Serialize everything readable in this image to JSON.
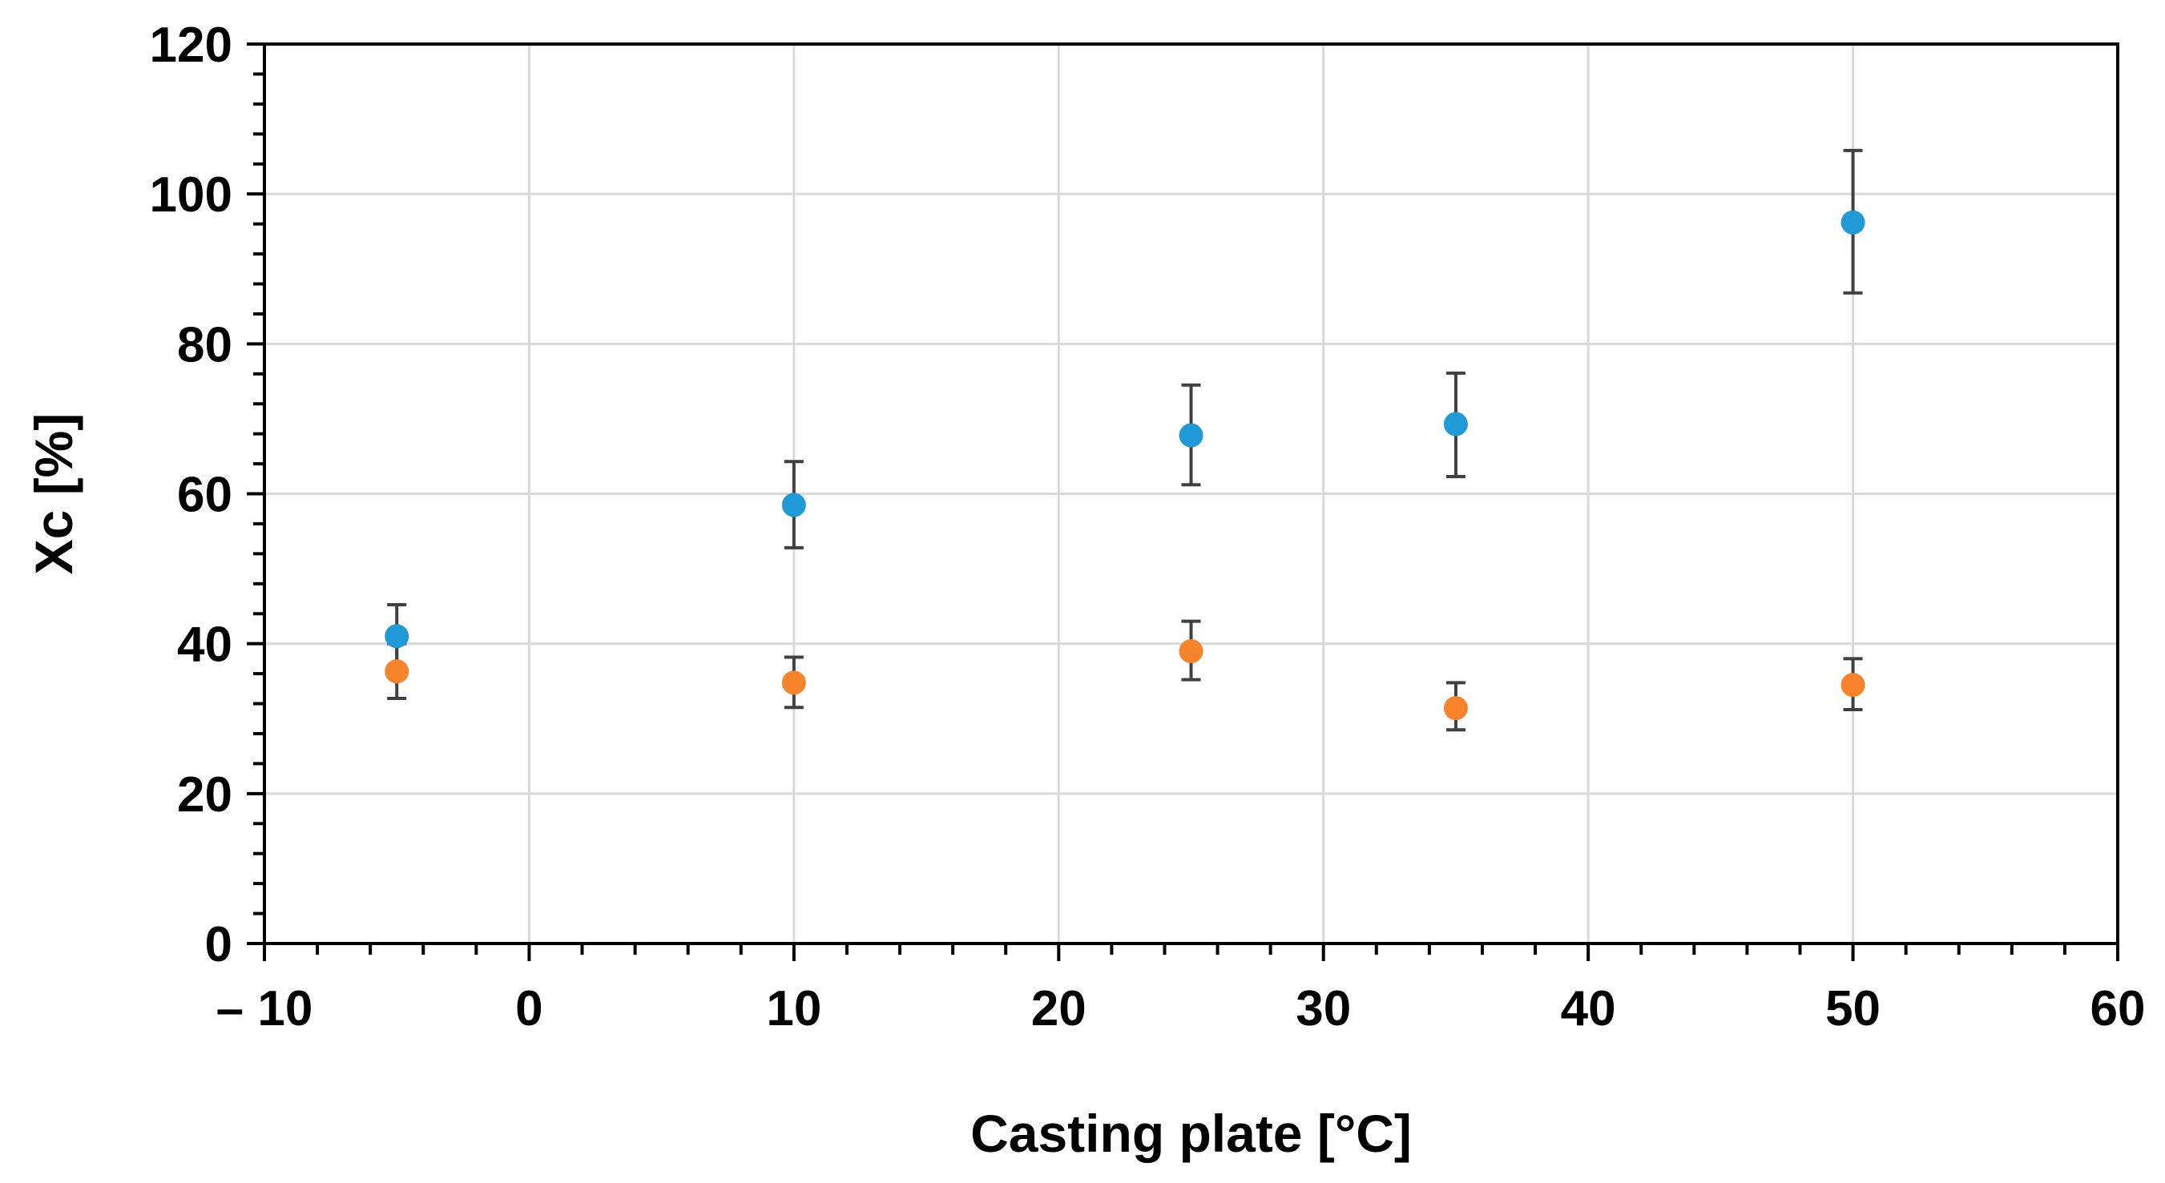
{
  "chart_data": {
    "type": "scatter",
    "title": "",
    "xlabel": "Casting plate [°C]",
    "ylabel": "Xc [%]",
    "xlim": [
      -10,
      60
    ],
    "ylim": [
      0,
      120
    ],
    "x_ticks": [
      -10,
      0,
      10,
      20,
      30,
      40,
      50,
      60
    ],
    "x_tick_labels": [
      "– 10",
      "0",
      "10",
      "20",
      "30",
      "40",
      "50",
      "60"
    ],
    "y_ticks": [
      0,
      20,
      40,
      60,
      80,
      100,
      120
    ],
    "y_tick_labels": [
      "0",
      "20",
      "40",
      "60",
      "80",
      "100",
      "120"
    ],
    "grid": true,
    "legend": "none",
    "series": [
      {
        "name": "series-blue",
        "color": "#1f9ad6",
        "x": [
          -5,
          10,
          25,
          35,
          50
        ],
        "y": [
          41,
          58.5,
          67.8,
          69.3,
          96.2
        ],
        "err_low": [
          37,
          52.8,
          61.2,
          62.3,
          86.8
        ],
        "err_high": [
          45.2,
          64.3,
          74.5,
          76.1,
          105.8
        ]
      },
      {
        "name": "series-orange",
        "color": "#f7842a",
        "x": [
          -5,
          10,
          25,
          35,
          50
        ],
        "y": [
          36.3,
          34.8,
          39,
          31.4,
          34.5
        ],
        "err_low": [
          32.7,
          31.5,
          35.2,
          28.5,
          31.2
        ],
        "err_high": [
          40,
          38.2,
          43,
          34.8,
          38
        ]
      }
    ]
  }
}
